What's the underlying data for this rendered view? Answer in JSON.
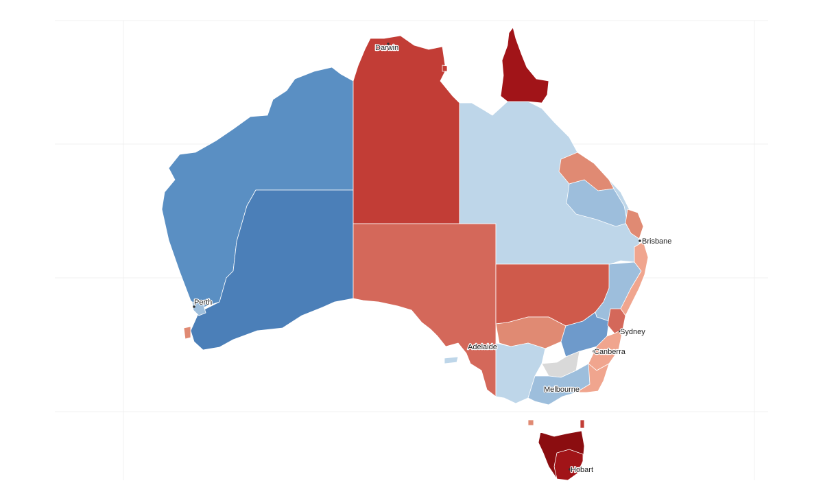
{
  "colors": {
    "blue_mid": "#5a8fc3",
    "blue_dark": "#4b7fb8",
    "blue_light": "#bed6e9",
    "blue_medium": "#9dbedc",
    "red_mid": "#c23d36",
    "red_salmon": "#d4685a",
    "red_orange": "#cf5a4b",
    "red_dark": "#a11418",
    "red_darkest": "#8b0d10",
    "pink_light": "#f0a58e",
    "pink_mid": "#e08a73",
    "grey": "#d9d9d9"
  },
  "regions": [
    {
      "id": "wa-north",
      "fill": "blue_mid"
    },
    {
      "id": "wa-south",
      "fill": "blue_dark"
    },
    {
      "id": "nt",
      "fill": "red_mid"
    },
    {
      "id": "sa",
      "fill": "red_salmon"
    },
    {
      "id": "qld-west",
      "fill": "blue_light"
    },
    {
      "id": "cape-york",
      "fill": "red_dark"
    },
    {
      "id": "nsw-west",
      "fill": "red_orange"
    },
    {
      "id": "tas",
      "fill": "red_darkest"
    }
  ],
  "cities": [
    {
      "name": "Darwin"
    },
    {
      "name": "Brisbane"
    },
    {
      "name": "Perth"
    },
    {
      "name": "Sydney"
    },
    {
      "name": "Adelaide"
    },
    {
      "name": "Canberra"
    },
    {
      "name": "Melbourne"
    },
    {
      "name": "Hobart"
    }
  ]
}
